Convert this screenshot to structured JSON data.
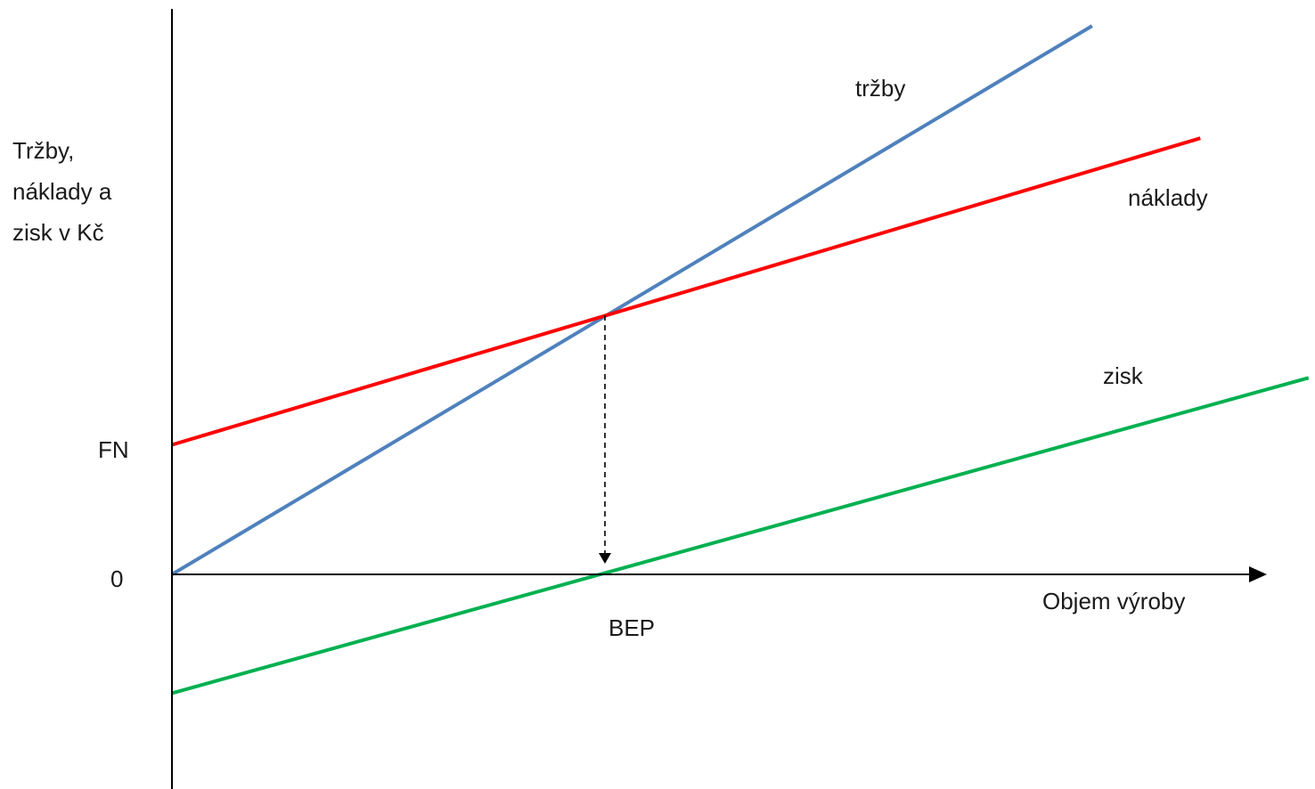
{
  "chart_data": {
    "type": "line",
    "title": "",
    "ylabel_lines": [
      "Tržby,",
      "náklady a",
      "zisk v Kč"
    ],
    "xlabel": "Objem výroby",
    "y_tick_labels": {
      "fixed_costs": "FN",
      "zero": "0"
    },
    "break_even_label": "BEP",
    "x_range": [
      0,
      10
    ],
    "y_range": [
      -2.6,
      12.8
    ],
    "grid": false,
    "legend": "none",
    "series": [
      {
        "name": "tržby",
        "color": "#4F81BD",
        "x": [
          0,
          8.5
        ],
        "y": [
          0,
          12.7
        ]
      },
      {
        "name": "náklady",
        "color": "#FF0000",
        "x": [
          0,
          9.5
        ],
        "y": [
          3.0,
          10.1
        ]
      },
      {
        "name": "zisk",
        "color": "#00B050",
        "x": [
          0,
          10.5
        ],
        "y": [
          -2.75,
          4.55
        ]
      }
    ],
    "break_even": {
      "x": 4.0,
      "y": 6.0
    }
  }
}
